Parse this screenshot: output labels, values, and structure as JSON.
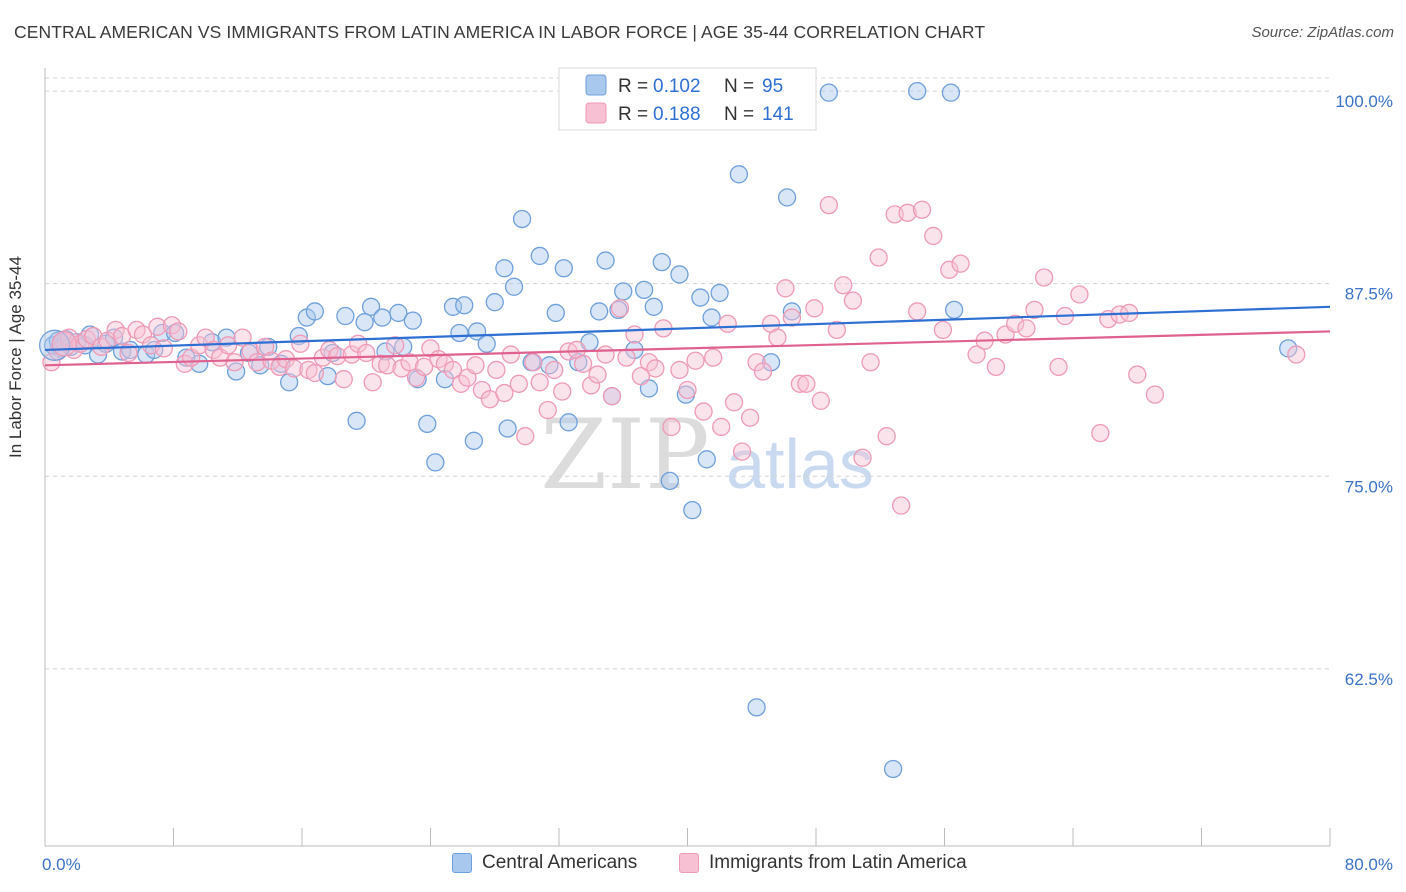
{
  "title": "CENTRAL AMERICAN VS IMMIGRANTS FROM LATIN AMERICA IN LABOR FORCE | AGE 35-44 CORRELATION CHART",
  "source": "Source: ZipAtlas.com",
  "watermark": {
    "zip": "ZIP",
    "atlas": "atlas"
  },
  "chart_data": {
    "type": "scatter",
    "xlabel": "",
    "ylabel": "In Labor Force | Age 35-44",
    "xlim": [
      0,
      80
    ],
    "ylim": [
      51,
      101.5
    ],
    "x_tick_labels": [
      {
        "value": 0,
        "label": "0.0%"
      },
      {
        "value": 80,
        "label": "80.0%"
      }
    ],
    "y_ticks": [
      {
        "value": 100,
        "label": "100.0%"
      },
      {
        "value": 87.5,
        "label": "87.5%"
      },
      {
        "value": 75,
        "label": "75.0%"
      },
      {
        "value": 62.5,
        "label": "62.5%"
      }
    ],
    "x_minor_ticks": [
      0,
      8,
      16,
      24,
      32,
      40,
      48,
      56,
      64,
      72,
      80
    ],
    "legend": {
      "placement": "top-center",
      "rows": [
        {
          "r_label": "R = ",
          "r_value": "0.102",
          "n_label": "N = ",
          "n_value": "95"
        },
        {
          "r_label": "R = ",
          "r_value": "0.188",
          "n_label": "N = ",
          "n_value": "141"
        }
      ]
    },
    "series": [
      {
        "name": "Central Americans",
        "color": "#6fa0dc",
        "fill": "#a8c8ee",
        "line_color": "#2e6fd4",
        "trend": {
          "x": [
            0,
            80
          ],
          "y": [
            83.2,
            86.0
          ]
        },
        "points": [
          [
            0.5,
            83.5
          ],
          [
            0.8,
            83.8
          ],
          [
            1.0,
            83.3
          ],
          [
            1.3,
            83.9
          ],
          [
            1.6,
            83.4
          ],
          [
            2.0,
            83.7
          ],
          [
            2.5,
            83.5
          ],
          [
            2.8,
            84.2
          ],
          [
            3.3,
            82.9
          ],
          [
            3.8,
            83.6
          ],
          [
            4.3,
            84.0
          ],
          [
            4.8,
            83.1
          ],
          [
            5.3,
            83.2
          ],
          [
            6.3,
            82.9
          ],
          [
            6.8,
            83.2
          ],
          [
            7.3,
            84.3
          ],
          [
            8.1,
            84.3
          ],
          [
            8.8,
            82.7
          ],
          [
            9.6,
            82.3
          ],
          [
            10.4,
            83.7
          ],
          [
            11.3,
            84.0
          ],
          [
            11.9,
            81.8
          ],
          [
            12.7,
            83.0
          ],
          [
            13.4,
            82.2
          ],
          [
            13.9,
            83.4
          ],
          [
            14.7,
            82.3
          ],
          [
            15.2,
            81.1
          ],
          [
            15.8,
            84.1
          ],
          [
            16.3,
            85.3
          ],
          [
            16.8,
            85.7
          ],
          [
            17.6,
            81.5
          ],
          [
            17.9,
            83.0
          ],
          [
            18.7,
            85.4
          ],
          [
            19.4,
            78.6
          ],
          [
            19.9,
            85.0
          ],
          [
            20.3,
            86.0
          ],
          [
            21.0,
            85.3
          ],
          [
            21.2,
            83.1
          ],
          [
            22.0,
            85.6
          ],
          [
            22.3,
            83.4
          ],
          [
            22.9,
            85.1
          ],
          [
            23.2,
            81.3
          ],
          [
            23.8,
            78.4
          ],
          [
            24.3,
            75.9
          ],
          [
            24.9,
            81.3
          ],
          [
            25.4,
            86.0
          ],
          [
            25.8,
            84.3
          ],
          [
            26.1,
            86.1
          ],
          [
            26.7,
            77.3
          ],
          [
            26.9,
            84.4
          ],
          [
            27.5,
            83.6
          ],
          [
            28.0,
            86.3
          ],
          [
            28.6,
            88.5
          ],
          [
            28.8,
            78.1
          ],
          [
            29.2,
            87.3
          ],
          [
            29.7,
            91.7
          ],
          [
            30.3,
            82.4
          ],
          [
            30.8,
            89.3
          ],
          [
            31.4,
            82.2
          ],
          [
            31.8,
            85.6
          ],
          [
            32.3,
            88.5
          ],
          [
            32.6,
            78.5
          ],
          [
            33.2,
            82.4
          ],
          [
            33.9,
            83.7
          ],
          [
            34.5,
            85.7
          ],
          [
            34.9,
            89.0
          ],
          [
            35.3,
            80.2
          ],
          [
            35.7,
            85.8
          ],
          [
            36.0,
            87.0
          ],
          [
            36.7,
            83.2
          ],
          [
            37.3,
            87.1
          ],
          [
            37.6,
            80.7
          ],
          [
            37.9,
            86.0
          ],
          [
            38.4,
            88.9
          ],
          [
            38.9,
            74.7
          ],
          [
            39.5,
            88.1
          ],
          [
            39.9,
            80.3
          ],
          [
            40.3,
            72.8
          ],
          [
            40.8,
            86.6
          ],
          [
            41.2,
            76.1
          ],
          [
            41.5,
            85.3
          ],
          [
            42.0,
            86.9
          ],
          [
            43.2,
            94.6
          ],
          [
            44.3,
            60.0
          ],
          [
            45.2,
            82.4
          ],
          [
            46.2,
            93.1
          ],
          [
            46.5,
            85.7
          ],
          [
            48.8,
            99.9
          ],
          [
            52.8,
            56.0
          ],
          [
            54.3,
            100.0
          ],
          [
            56.4,
            99.9
          ],
          [
            56.6,
            85.8
          ],
          [
            77.4,
            83.3
          ]
        ]
      },
      {
        "name": "Immigrants from Latin America",
        "color": "#ef9ab6",
        "fill": "#f7c1d3",
        "line_color": "#e0608f",
        "trend": {
          "x": [
            0,
            80
          ],
          "y": [
            82.2,
            84.4
          ]
        },
        "points": [
          [
            0.4,
            82.4
          ],
          [
            0.8,
            83.1
          ],
          [
            1.1,
            83.8
          ],
          [
            1.5,
            84.0
          ],
          [
            1.8,
            83.2
          ],
          [
            2.2,
            83.6
          ],
          [
            2.6,
            83.9
          ],
          [
            3.0,
            84.1
          ],
          [
            3.5,
            83.4
          ],
          [
            3.9,
            83.8
          ],
          [
            4.4,
            84.5
          ],
          [
            4.8,
            84.1
          ],
          [
            5.2,
            83.0
          ],
          [
            5.7,
            84.5
          ],
          [
            6.1,
            84.2
          ],
          [
            6.6,
            83.5
          ],
          [
            7.0,
            84.7
          ],
          [
            7.4,
            83.3
          ],
          [
            7.9,
            84.8
          ],
          [
            8.3,
            84.4
          ],
          [
            8.7,
            82.3
          ],
          [
            9.1,
            82.7
          ],
          [
            9.6,
            83.5
          ],
          [
            10.0,
            84.0
          ],
          [
            10.5,
            83.2
          ],
          [
            10.9,
            82.7
          ],
          [
            11.4,
            83.5
          ],
          [
            11.8,
            82.4
          ],
          [
            12.3,
            84.0
          ],
          [
            12.8,
            83.1
          ],
          [
            13.2,
            82.4
          ],
          [
            13.7,
            83.4
          ],
          [
            14.1,
            82.5
          ],
          [
            14.6,
            82.1
          ],
          [
            15.0,
            82.6
          ],
          [
            15.5,
            82.0
          ],
          [
            15.9,
            83.6
          ],
          [
            16.4,
            81.9
          ],
          [
            16.8,
            81.7
          ],
          [
            17.3,
            82.7
          ],
          [
            17.7,
            83.2
          ],
          [
            18.2,
            82.8
          ],
          [
            18.6,
            81.3
          ],
          [
            19.1,
            82.9
          ],
          [
            19.5,
            83.6
          ],
          [
            20.0,
            83.0
          ],
          [
            20.4,
            81.1
          ],
          [
            20.9,
            82.3
          ],
          [
            21.3,
            82.2
          ],
          [
            21.8,
            83.5
          ],
          [
            22.2,
            82.0
          ],
          [
            22.7,
            82.4
          ],
          [
            23.1,
            81.4
          ],
          [
            23.6,
            82.1
          ],
          [
            24.0,
            83.3
          ],
          [
            24.5,
            82.6
          ],
          [
            24.9,
            82.3
          ],
          [
            25.4,
            81.9
          ],
          [
            25.9,
            81.0
          ],
          [
            26.3,
            81.4
          ],
          [
            26.8,
            82.2
          ],
          [
            27.2,
            80.6
          ],
          [
            27.7,
            80.0
          ],
          [
            28.1,
            81.9
          ],
          [
            28.6,
            80.4
          ],
          [
            29.0,
            82.9
          ],
          [
            29.5,
            81.0
          ],
          [
            29.9,
            77.6
          ],
          [
            30.4,
            82.4
          ],
          [
            30.8,
            81.1
          ],
          [
            31.3,
            79.3
          ],
          [
            31.7,
            81.9
          ],
          [
            32.2,
            80.5
          ],
          [
            32.6,
            83.1
          ],
          [
            33.1,
            83.2
          ],
          [
            33.5,
            82.3
          ],
          [
            34.0,
            80.9
          ],
          [
            34.4,
            81.6
          ],
          [
            34.9,
            82.9
          ],
          [
            35.3,
            80.2
          ],
          [
            35.8,
            85.9
          ],
          [
            36.2,
            82.7
          ],
          [
            36.7,
            84.2
          ],
          [
            37.1,
            81.5
          ],
          [
            37.6,
            82.4
          ],
          [
            38.0,
            82.0
          ],
          [
            38.5,
            84.6
          ],
          [
            39.0,
            78.2
          ],
          [
            39.5,
            81.9
          ],
          [
            40.0,
            80.6
          ],
          [
            40.5,
            82.5
          ],
          [
            41.0,
            79.2
          ],
          [
            41.6,
            82.7
          ],
          [
            42.1,
            78.2
          ],
          [
            42.5,
            84.9
          ],
          [
            42.9,
            79.8
          ],
          [
            43.4,
            76.6
          ],
          [
            43.9,
            78.8
          ],
          [
            44.3,
            82.4
          ],
          [
            44.7,
            81.8
          ],
          [
            45.2,
            84.9
          ],
          [
            45.6,
            84.0
          ],
          [
            46.1,
            87.2
          ],
          [
            46.5,
            85.3
          ],
          [
            47.0,
            81.0
          ],
          [
            47.4,
            81.0
          ],
          [
            47.9,
            85.9
          ],
          [
            48.3,
            79.9
          ],
          [
            48.8,
            92.6
          ],
          [
            49.3,
            84.5
          ],
          [
            49.7,
            87.4
          ],
          [
            50.3,
            86.4
          ],
          [
            50.9,
            76.2
          ],
          [
            51.4,
            82.4
          ],
          [
            51.9,
            89.2
          ],
          [
            52.4,
            77.6
          ],
          [
            52.9,
            92.0
          ],
          [
            53.3,
            73.1
          ],
          [
            53.7,
            92.1
          ],
          [
            54.3,
            85.7
          ],
          [
            54.6,
            92.3
          ],
          [
            55.3,
            90.6
          ],
          [
            55.9,
            84.5
          ],
          [
            56.3,
            88.4
          ],
          [
            57.0,
            88.8
          ],
          [
            58.0,
            82.9
          ],
          [
            58.5,
            83.8
          ],
          [
            59.2,
            82.1
          ],
          [
            59.8,
            84.2
          ],
          [
            60.4,
            84.9
          ],
          [
            61.1,
            84.6
          ],
          [
            61.6,
            85.8
          ],
          [
            62.2,
            87.9
          ],
          [
            63.1,
            82.1
          ],
          [
            63.5,
            85.4
          ],
          [
            64.4,
            86.8
          ],
          [
            65.7,
            77.8
          ],
          [
            66.2,
            85.2
          ],
          [
            66.9,
            85.5
          ],
          [
            68.0,
            81.6
          ],
          [
            69.1,
            80.3
          ],
          [
            77.9,
            82.9
          ],
          [
            67.5,
            85.6
          ]
        ]
      }
    ]
  }
}
